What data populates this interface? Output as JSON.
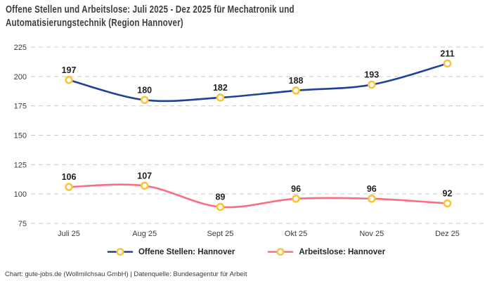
{
  "title": {
    "line1": "Offene Stellen und Arbeitslose: Juli 2025 - Dez 2025 für Mechatronik und",
    "line2": "Automatisierungstechnik (Region Hannover)"
  },
  "footer": {
    "text": "Chart: gute-jobs.de (Wollmilchsau GmbH) | Datenquelle: Bundesagentur für Arbeit"
  },
  "colors": {
    "offene_stellen": "#21409a",
    "arbeitslose": "#f96e84",
    "marker_ring": "#fcc434",
    "marker_fill": "#ffffff",
    "gridline": "#c9c9c9",
    "tick_label": "#3c3c3c",
    "value_label": "#1f1f1f",
    "title_text": "#3d3d3d",
    "footer_text": "#3a3a3a"
  },
  "chart_data": {
    "type": "line",
    "title": "Offene Stellen und Arbeitslose: Juli 2025 - Dez 2025 für Mechatronik und Automatisierungstechnik (Region Hannover)",
    "categories": [
      "Juli 25",
      "Aug 25",
      "Sept 25",
      "Okt 25",
      "Nov 25",
      "Dez 25"
    ],
    "series": [
      {
        "name": "Offene Stellen: Hannover",
        "values": [
          197,
          180,
          182,
          188,
          193,
          211
        ],
        "color_key": "offene_stellen"
      },
      {
        "name": "Arbeitslose: Hannover",
        "values": [
          106,
          107,
          89,
          96,
          96,
          92
        ],
        "color_key": "arbeitslose"
      }
    ],
    "y_ticks": [
      225,
      200,
      175,
      150,
      125,
      100,
      75
    ],
    "ylim": [
      75,
      225
    ],
    "xlabel": "",
    "ylabel": "",
    "grid": "horizontal dashed",
    "legend_position": "bottom",
    "markers": "open circle, yellow ring with white fill",
    "data_labels": true
  }
}
